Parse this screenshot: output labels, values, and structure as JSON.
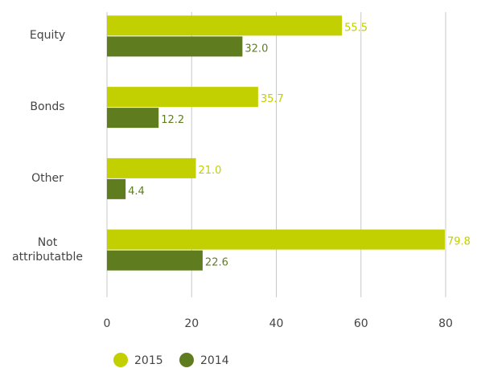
{
  "chart_data": {
    "type": "hbar",
    "categories": [
      "Equity",
      "Bonds",
      "Other",
      "Not\nattributatble"
    ],
    "series": [
      {
        "name": "2015",
        "color": "#c2cf00",
        "values": [
          55.5,
          35.7,
          21.0,
          79.8
        ],
        "value_labels": [
          "55.5",
          "35.7",
          "21.0",
          "79.8"
        ]
      },
      {
        "name": "2014",
        "color": "#5f7d1f",
        "values": [
          32.0,
          12.2,
          4.4,
          22.6
        ],
        "value_labels": [
          "32.0",
          "12.2",
          "4.4",
          "22.6"
        ]
      }
    ],
    "xlim": [
      0,
      80
    ],
    "xticks": [
      0,
      20,
      40,
      60,
      80
    ],
    "grid": true,
    "legend": "bottom"
  }
}
